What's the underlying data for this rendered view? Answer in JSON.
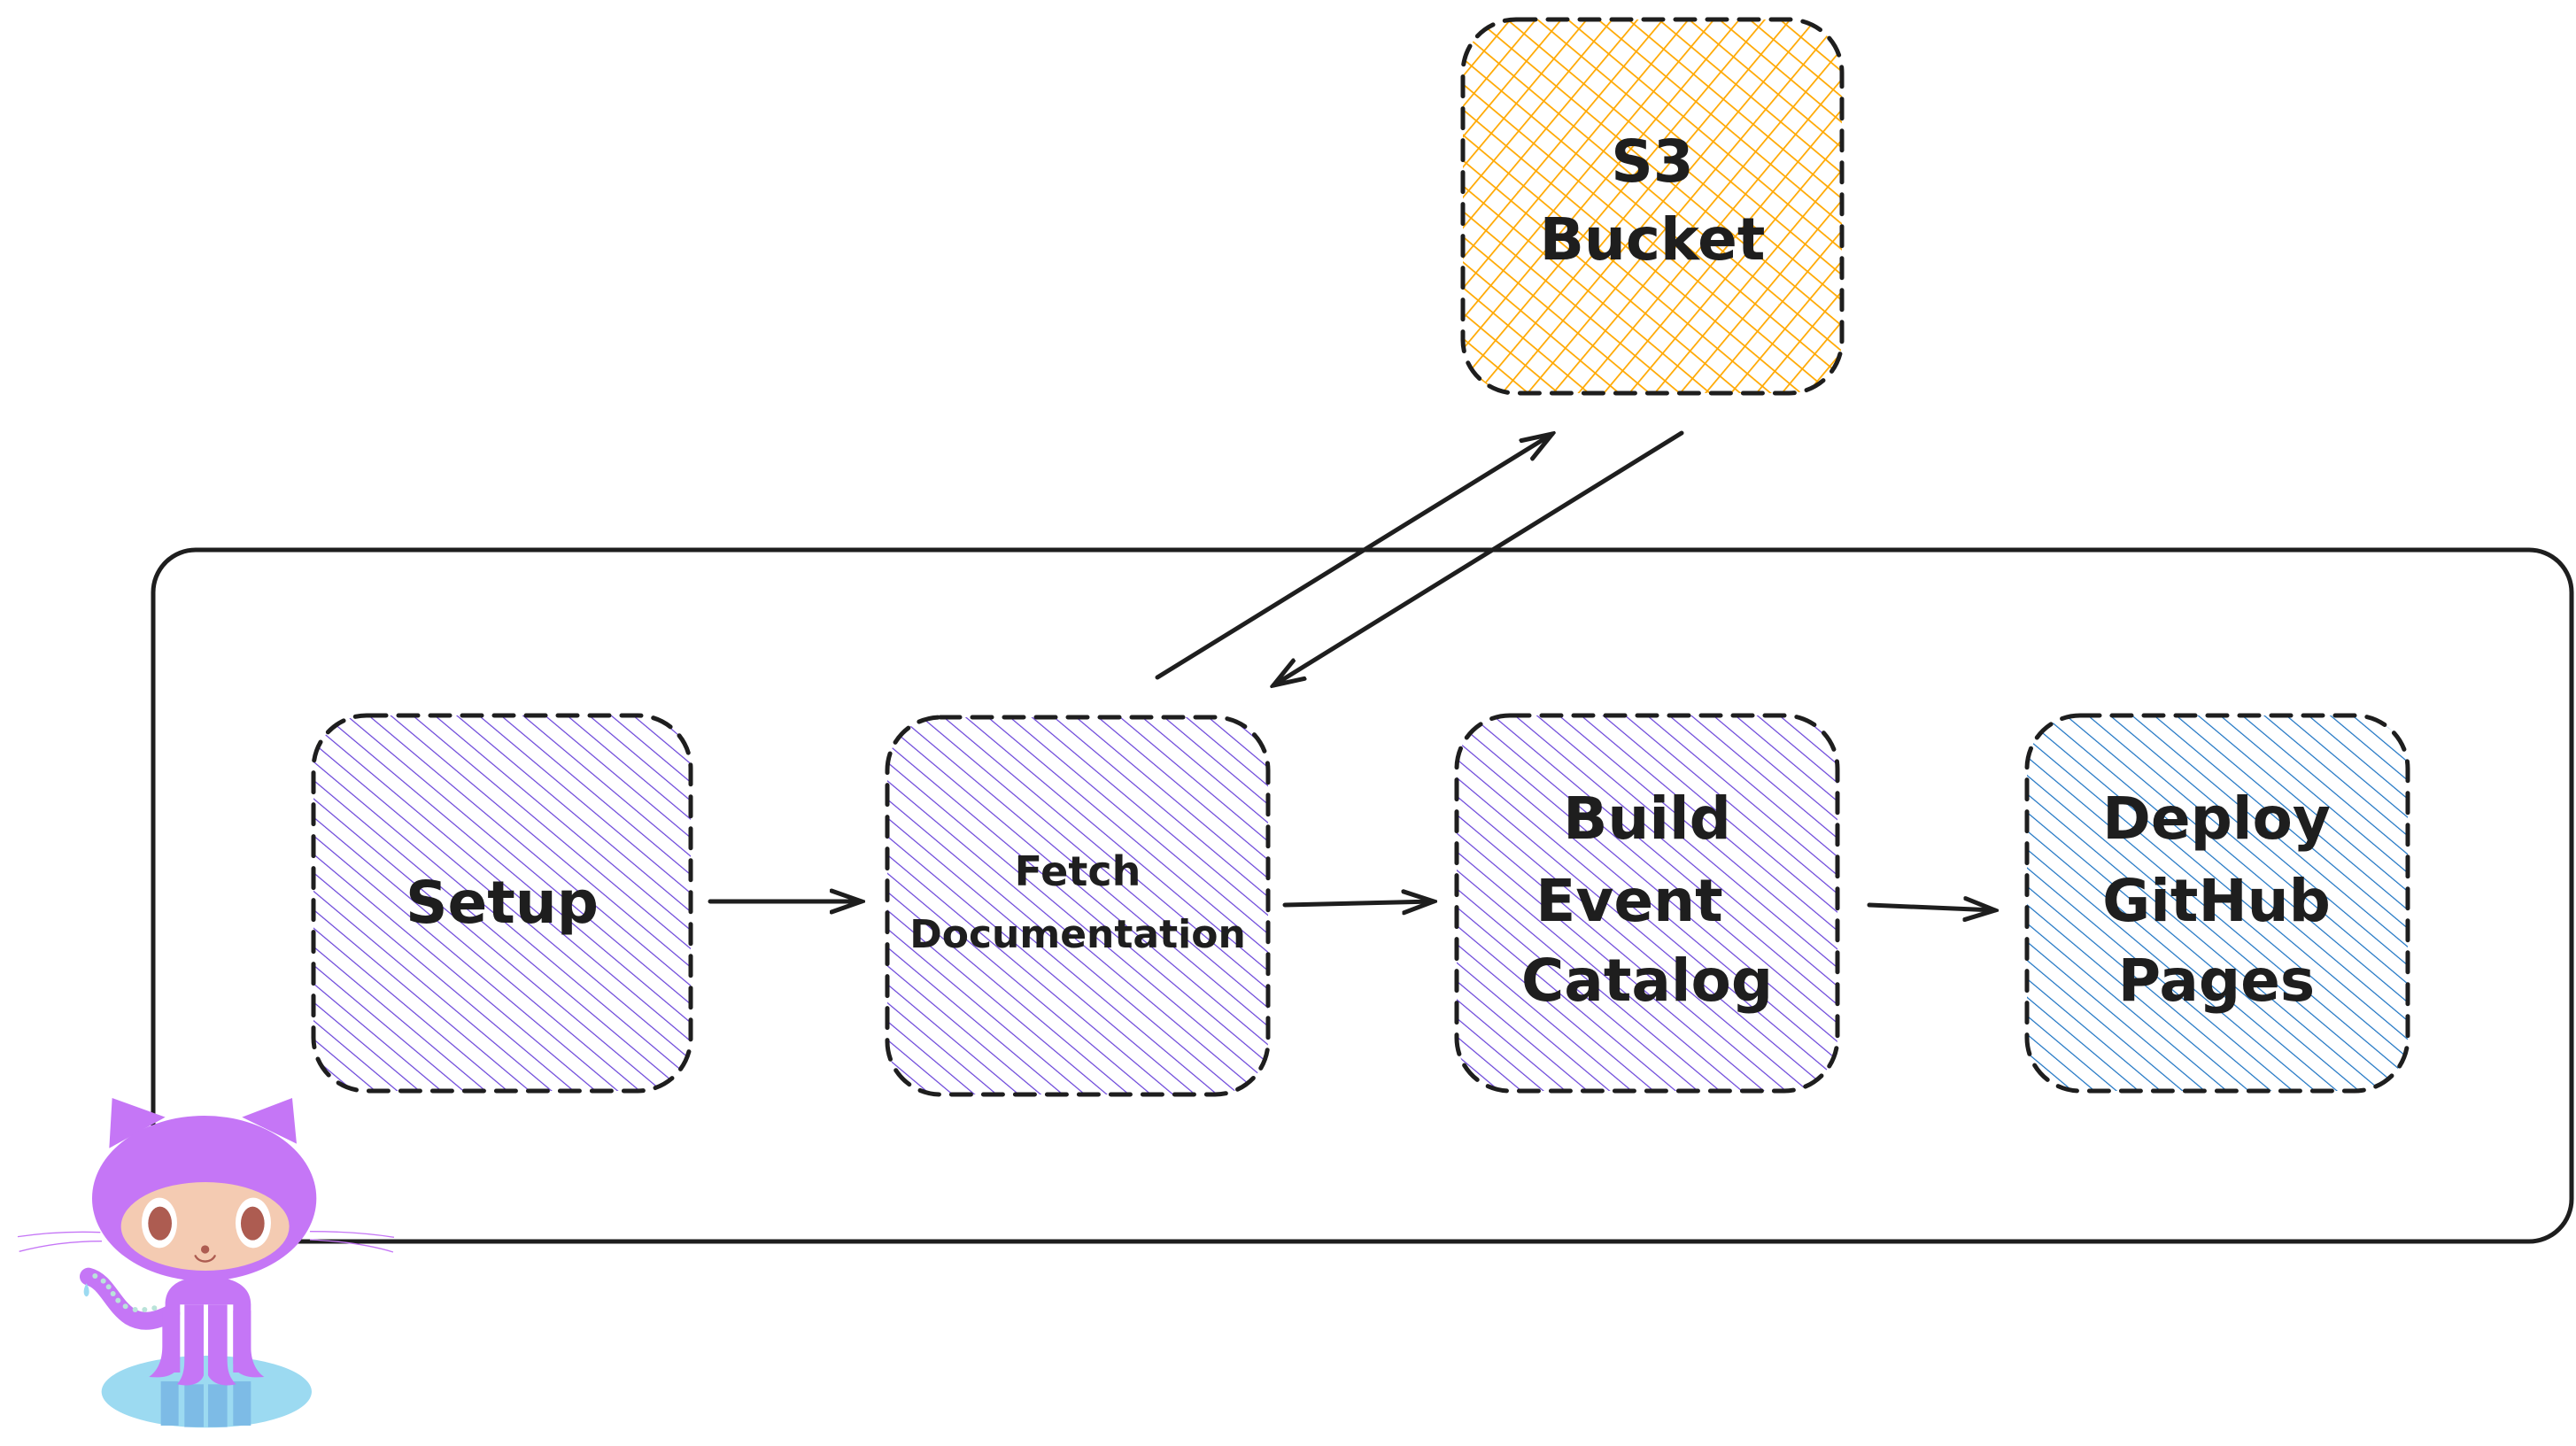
{
  "diagram": {
    "nodes": {
      "s3": {
        "lines": [
          "S3",
          "Bucket"
        ],
        "fill": "#ffa800"
      },
      "setup": {
        "lines": [
          "Setup"
        ],
        "fill": "#6741d9"
      },
      "fetch": {
        "lines": [
          "Fetch",
          "Documentation"
        ],
        "fill": "#6741d9"
      },
      "build": {
        "lines": [
          "Build",
          "Event",
          "Catalog"
        ],
        "fill": "#6741d9"
      },
      "deploy": {
        "lines": [
          "Deploy",
          "GitHub",
          "Pages"
        ],
        "fill": "#1971c2"
      }
    },
    "edges": [
      {
        "from": "setup",
        "to": "fetch"
      },
      {
        "from": "fetch",
        "to": "build"
      },
      {
        "from": "build",
        "to": "deploy"
      },
      {
        "from": "fetch",
        "to": "s3"
      },
      {
        "from": "s3",
        "to": "fetch"
      }
    ],
    "mascot": {
      "icon": "octocat-icon",
      "body_color": "#c576f6",
      "face_color": "#f4cbb2",
      "water_color": "#9cdaf1"
    }
  }
}
